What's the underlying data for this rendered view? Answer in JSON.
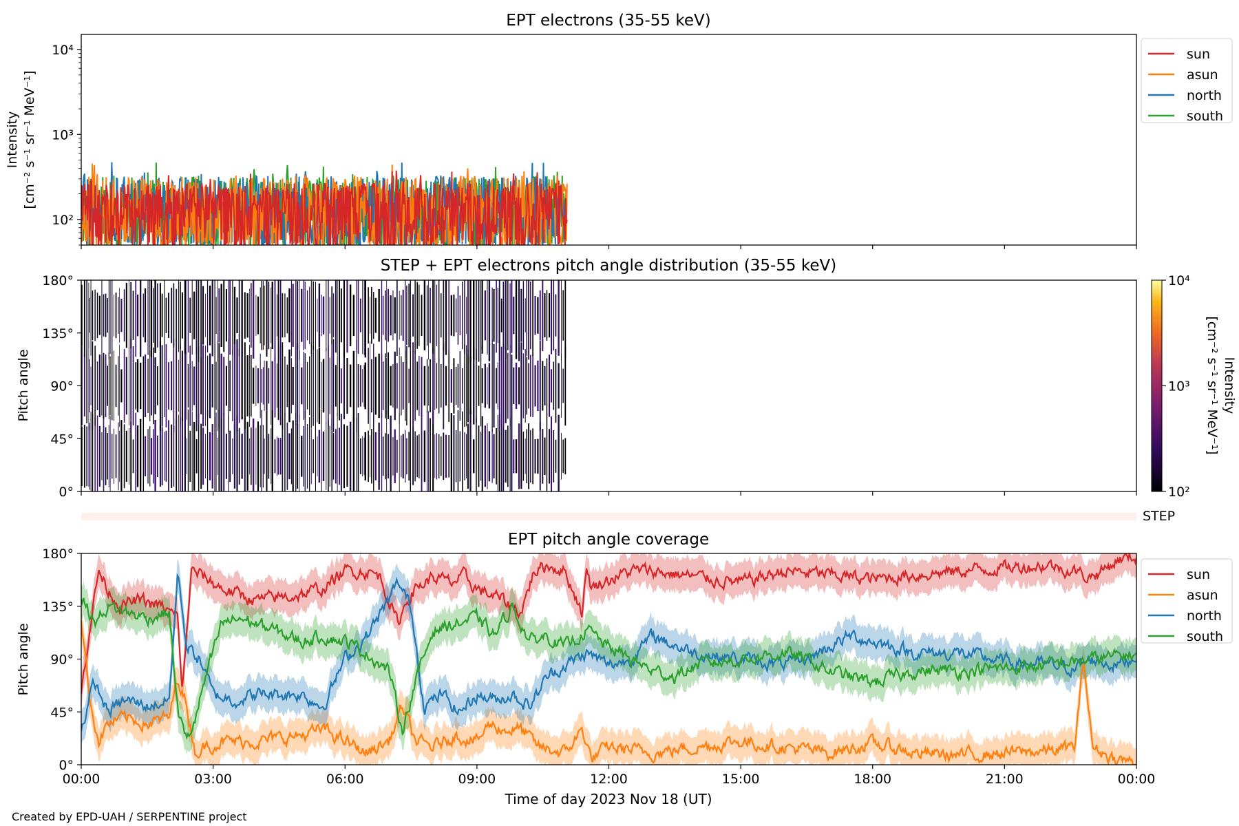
{
  "footer": "Created by EPD-UAH / SERPENTINE project",
  "xlabel": "Time of day 2023 Nov 18 (UT)",
  "x_ticks": [
    "00:00",
    "03:00",
    "06:00",
    "09:00",
    "12:00",
    "15:00",
    "18:00",
    "21:00",
    "00:00"
  ],
  "colors": {
    "sun": "#d62728",
    "asun": "#ff7f0e",
    "north": "#1f77b4",
    "south": "#2ca02c"
  },
  "chart_data": [
    {
      "type": "line",
      "title": "EPT electrons (35-55 keV)",
      "ylabel_line1": "Intensity",
      "ylabel_line2": "[cm⁻² s⁻¹ sr⁻¹ MeV⁻¹]",
      "yscale": "log",
      "ylim": [
        50,
        15000
      ],
      "yticks": [
        "10²",
        "10³",
        "10⁴"
      ],
      "xlim_hours": [
        0,
        24
      ],
      "data_end_hour": 11.05,
      "legend_position": "outside-right",
      "series": [
        {
          "name": "sun",
          "color": "#d62728",
          "values_hint": "noisy, ~50-450, 00:00-11:03"
        },
        {
          "name": "asun",
          "color": "#ff7f0e",
          "values_hint": "noisy, ~50-500"
        },
        {
          "name": "north",
          "color": "#1f77b4",
          "values_hint": "noisy, ~50-480"
        },
        {
          "name": "south",
          "color": "#2ca02c",
          "values_hint": "noisy, ~50-500"
        }
      ]
    },
    {
      "type": "heatmap",
      "title": "STEP + EPT electrons pitch angle distribution (35-55 keV)",
      "ylabel": "Pitch angle",
      "yticks": [
        "0°",
        "45°",
        "90°",
        "135°",
        "180°"
      ],
      "ylim": [
        0,
        180
      ],
      "colorbar": {
        "label_line1": "Intensity",
        "label_line2": "[cm⁻² s⁻¹ sr⁻¹ MeV⁻¹]",
        "scale": "log",
        "range": [
          100,
          10000
        ],
        "ticks": [
          "10²",
          "10³",
          "10⁴"
        ],
        "colormap": "inferno"
      },
      "data_end_hour": 11.05
    },
    {
      "type": "bar",
      "label": "STEP",
      "color": "#fff0ea"
    },
    {
      "type": "line",
      "title": "EPT pitch angle coverage",
      "ylabel": "Pitch angle",
      "yticks": [
        "0°",
        "45°",
        "90°",
        "135°",
        "180°"
      ],
      "ylim": [
        0,
        180
      ],
      "xlim_hours": [
        0,
        24
      ],
      "legend_position": "outside-right",
      "series": [
        {
          "name": "sun",
          "color": "#d62728",
          "x": [
            0,
            0.2,
            0.4,
            0.6,
            0.9,
            1.3,
            1.8,
            2.2,
            2.3,
            2.5,
            2.8,
            3.2,
            4,
            5,
            5.5,
            6,
            6.5,
            6.8,
            7,
            7.2,
            7.4,
            7.6,
            8,
            8.4,
            8.7,
            9,
            9.3,
            9.6,
            10,
            10.3,
            10.6,
            11,
            11.4,
            11.5,
            11.6,
            11.8,
            12.5,
            13,
            14,
            15,
            16,
            17,
            18,
            19,
            20,
            21,
            22,
            22.6,
            22.9,
            23.2,
            23.6,
            24
          ],
          "y": [
            60,
            120,
            165,
            150,
            135,
            140,
            135,
            125,
            60,
            165,
            160,
            150,
            140,
            145,
            150,
            165,
            165,
            160,
            140,
            120,
            140,
            150,
            160,
            155,
            160,
            150,
            145,
            140,
            130,
            165,
            170,
            165,
            130,
            170,
            150,
            155,
            165,
            165,
            160,
            155,
            165,
            162,
            158,
            162,
            165,
            168,
            170,
            165,
            160,
            165,
            175,
            178
          ]
        },
        {
          "name": "asun",
          "color": "#ff7f0e",
          "x": [
            0,
            0.2,
            0.4,
            0.6,
            1,
            1.5,
            2,
            2.2,
            2.4,
            2.6,
            2.8,
            3.2,
            4,
            5,
            5.5,
            6,
            6.5,
            7,
            7.3,
            7.6,
            8,
            8.5,
            9,
            9.3,
            9.6,
            10,
            10.4,
            11,
            11.4,
            11.6,
            12,
            13,
            14,
            15,
            16,
            17,
            18,
            19,
            20,
            21,
            22,
            22.6,
            22.8,
            23,
            23.5,
            24
          ],
          "y": [
            125,
            55,
            20,
            35,
            40,
            35,
            40,
            75,
            50,
            10,
            15,
            20,
            20,
            25,
            30,
            20,
            10,
            20,
            50,
            20,
            15,
            25,
            20,
            35,
            30,
            30,
            15,
            10,
            30,
            5,
            15,
            10,
            15,
            20,
            15,
            10,
            18,
            10,
            8,
            10,
            12,
            15,
            90,
            15,
            5,
            2
          ]
        },
        {
          "name": "north",
          "color": "#1f77b4",
          "x": [
            0,
            0.3,
            0.6,
            1,
            1.5,
            2,
            2.2,
            2.4,
            2.7,
            3,
            3.5,
            4,
            5,
            5.5,
            6,
            6.5,
            7,
            7.2,
            7.5,
            7.8,
            8.2,
            8.6,
            9,
            9.4,
            9.8,
            10.2,
            10.6,
            11,
            11.5,
            12,
            12.5,
            13,
            13.3,
            13.6,
            14,
            15,
            16,
            16.5,
            17,
            17.5,
            18,
            18.5,
            19,
            20,
            21,
            22,
            22.6,
            23,
            23.5,
            24
          ],
          "y": [
            30,
            70,
            45,
            55,
            50,
            55,
            165,
            100,
            90,
            60,
            55,
            60,
            60,
            50,
            90,
            110,
            140,
            155,
            135,
            50,
            60,
            45,
            60,
            55,
            60,
            50,
            75,
            85,
            95,
            85,
            90,
            110,
            105,
            100,
            95,
            90,
            85,
            90,
            100,
            110,
            105,
            100,
            95,
            95,
            88,
            85,
            82,
            90,
            85,
            92
          ]
        },
        {
          "name": "south",
          "color": "#2ca02c",
          "x": [
            0,
            0.3,
            0.6,
            1,
            1.5,
            2,
            2.2,
            2.4,
            2.6,
            2.8,
            3.2,
            3.6,
            4,
            5,
            5.5,
            6,
            6.5,
            7,
            7.3,
            7.6,
            8,
            8.5,
            9,
            9.4,
            9.8,
            10.2,
            10.6,
            11,
            11.5,
            12,
            12.5,
            13,
            13.5,
            14,
            15,
            16,
            16.5,
            17,
            17.5,
            18,
            18.5,
            19,
            20,
            21,
            22,
            22.6,
            23,
            23.5,
            24
          ],
          "y": [
            145,
            120,
            135,
            130,
            125,
            130,
            45,
            20,
            40,
            70,
            120,
            125,
            120,
            105,
            110,
            105,
            95,
            80,
            30,
            70,
            115,
            120,
            125,
            110,
            135,
            105,
            110,
            100,
            115,
            100,
            90,
            80,
            75,
            85,
            90,
            95,
            90,
            80,
            75,
            70,
            75,
            80,
            80,
            82,
            85,
            88,
            90,
            92,
            95
          ]
        }
      ]
    }
  ]
}
